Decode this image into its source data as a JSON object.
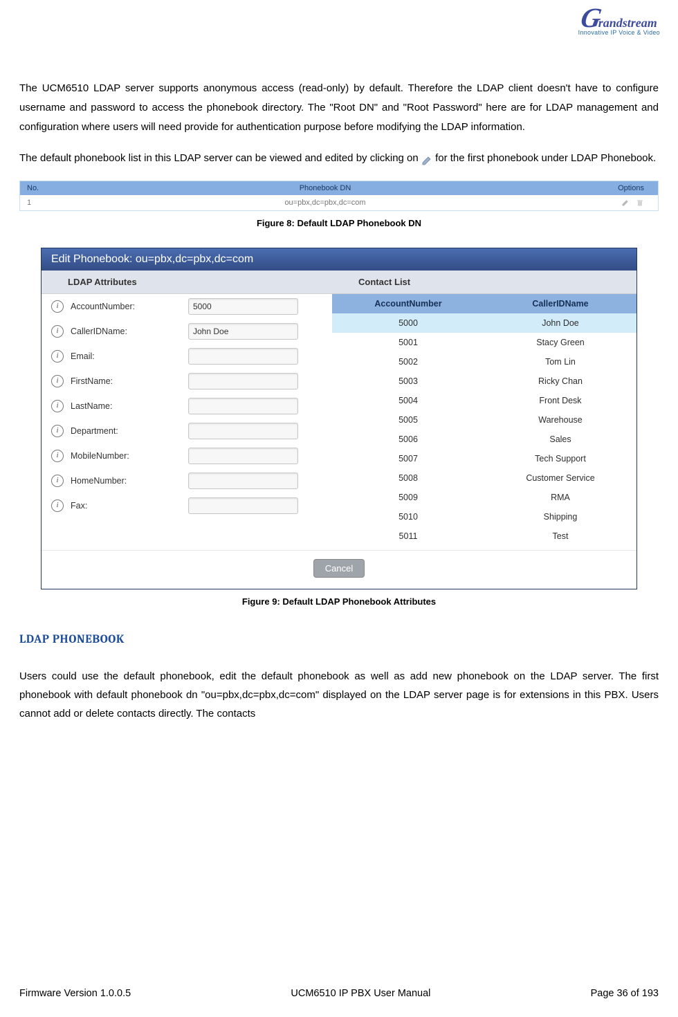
{
  "logo": {
    "brand_g": "G",
    "brand_rest": "randstream",
    "tagline": "Innovative IP Voice & Video"
  },
  "para1": "The UCM6510 LDAP server supports anonymous access (read-only) by default. Therefore the LDAP client doesn't have to configure username and password to access the phonebook directory. The \"Root DN\" and \"Root Password\" here are for LDAP management and configuration where users will need provide for authentication purpose before modifying the LDAP information.",
  "para2_a": "The default phonebook list in this LDAP server can be viewed and edited by clicking on ",
  "para2_b": " for the first phonebook under LDAP Phonebook.",
  "fig8": {
    "head": {
      "no": "No.",
      "dn": "Phonebook DN",
      "opt": "Options"
    },
    "row": {
      "no": "1",
      "dn": "ou=pbx,dc=pbx,dc=com"
    },
    "caption": "Figure 8: Default LDAP Phonebook DN"
  },
  "fig9": {
    "title": "Edit Phonebook: ou=pbx,dc=pbx,dc=com",
    "left_head": "LDAP Attributes",
    "right_head": "Contact List",
    "attributes": [
      {
        "label": "AccountNumber:",
        "value": "5000"
      },
      {
        "label": "CallerIDName:",
        "value": "John Doe"
      },
      {
        "label": "Email:",
        "value": ""
      },
      {
        "label": "FirstName:",
        "value": ""
      },
      {
        "label": "LastName:",
        "value": ""
      },
      {
        "label": "Department:",
        "value": ""
      },
      {
        "label": "MobileNumber:",
        "value": ""
      },
      {
        "label": "HomeNumber:",
        "value": ""
      },
      {
        "label": "Fax:",
        "value": ""
      }
    ],
    "contact_head": {
      "c1": "AccountNumber",
      "c2": "CallerIDName"
    },
    "contacts": [
      {
        "num": "5000",
        "name": "John Doe",
        "sel": true
      },
      {
        "num": "5001",
        "name": "Stacy Green"
      },
      {
        "num": "5002",
        "name": "Tom Lin"
      },
      {
        "num": "5003",
        "name": "Ricky Chan"
      },
      {
        "num": "5004",
        "name": "Front Desk"
      },
      {
        "num": "5005",
        "name": "Warehouse"
      },
      {
        "num": "5006",
        "name": "Sales"
      },
      {
        "num": "5007",
        "name": "Tech Support"
      },
      {
        "num": "5008",
        "name": "Customer Service"
      },
      {
        "num": "5009",
        "name": "RMA"
      },
      {
        "num": "5010",
        "name": "Shipping"
      },
      {
        "num": "5011",
        "name": "Test"
      }
    ],
    "cancel": "Cancel",
    "caption": "Figure 9: Default LDAP Phonebook Attributes"
  },
  "section_heading": "LDAP PHONEBOOK",
  "para3": "Users could use the default phonebook, edit the default phonebook as well as add new phonebook on the LDAP server. The first phonebook with default phonebook dn \"ou=pbx,dc=pbx,dc=com\" displayed on the LDAP server page is for extensions in this PBX. Users cannot add or delete contacts directly. The contacts",
  "footer": {
    "left": "Firmware Version 1.0.0.5",
    "center": "UCM6510 IP PBX User Manual",
    "right": "Page 36 of 193"
  },
  "colors": {
    "brand": "#3d4b9e",
    "table_head_bg": "#86aee0",
    "dialog_title_bg": "#3c5a9a",
    "panel_head_bg": "#dfe3eb",
    "contact_head_bg": "#8db2e0",
    "row_selected": "#d3ecf9",
    "cancel_bg": "#9fa4ab",
    "heading": "#1f4e9c"
  }
}
